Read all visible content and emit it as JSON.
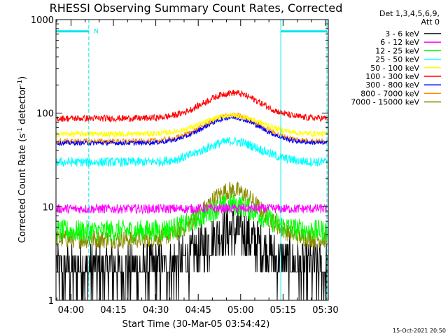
{
  "chart_data": {
    "type": "line",
    "title": "RHESSI Observing Summary Count Rates, Corrected",
    "xlabel": "Start Time (30-Mar-05 03:54:42)",
    "ylabel_parts": [
      "Corrected Count Rate (s",
      "-1",
      " detector",
      "-1",
      ")"
    ],
    "yscale": "log",
    "ylim": [
      1,
      1000
    ],
    "y_ticks": [
      {
        "value": 1,
        "label": "1"
      },
      {
        "value": 10,
        "label": "10"
      },
      {
        "value": 100,
        "label": "100"
      },
      {
        "value": 1000,
        "label": "1000"
      }
    ],
    "xlim_minutes": [
      234.7,
      331.0
    ],
    "x_ticks": [
      {
        "minute": 240,
        "label": "04:00"
      },
      {
        "minute": 255,
        "label": "04:15"
      },
      {
        "minute": 270,
        "label": "04:30"
      },
      {
        "minute": 285,
        "label": "04:45"
      },
      {
        "minute": 300,
        "label": "05:00"
      },
      {
        "minute": 315,
        "label": "05:15"
      },
      {
        "minute": 330,
        "label": "05:30"
      }
    ],
    "legend_header": [
      "Det 1,3,4,5,6,9,",
      "Att 0"
    ],
    "legend_position": "right",
    "series": [
      {
        "name": "3 - 6 keV",
        "color": "#000000",
        "base": 2.1,
        "peak": 5.5,
        "noise": 0.28,
        "quantized": true
      },
      {
        "name": "6 - 12 keV",
        "color": "#ff00ff",
        "base": 9.5,
        "peak": 9.6,
        "noise": 0.05
      },
      {
        "name": "12 - 25 keV",
        "color": "#00ff00",
        "base": 5.5,
        "peak": 10.5,
        "noise": 0.12
      },
      {
        "name": "25 - 50 keV",
        "color": "#00ffff",
        "base": 30,
        "peak": 50,
        "noise": 0.05
      },
      {
        "name": "50 - 100 keV",
        "color": "#ffff00",
        "base": 60,
        "peak": 95,
        "noise": 0.03
      },
      {
        "name": "100 - 300 keV",
        "color": "#ff0000",
        "base": 88,
        "peak": 165,
        "noise": 0.035
      },
      {
        "name": "300 - 800 keV",
        "color": "#0000ff",
        "base": 48,
        "peak": 90,
        "noise": 0.025
      },
      {
        "name": "800 - 7000 keV",
        "color": "#ff8c00",
        "base": 50,
        "peak": 95,
        "noise": 0.03
      },
      {
        "name": "7000 - 15000 keV",
        "color": "#8b8b00",
        "base": 4.5,
        "peak": 15,
        "noise": 0.1
      }
    ],
    "flags": [
      {
        "label": "N",
        "start_minute": 234.7,
        "end_minute": 246.3
      },
      {
        "label": "",
        "start_minute": 314.2,
        "end_minute": 330.5
      }
    ],
    "intervals": [
      {
        "kind": "solid",
        "minute": 234.7
      },
      {
        "kind": "dashed",
        "minute": 246.3
      },
      {
        "kind": "solid",
        "minute": 314.2
      },
      {
        "kind": "dashed",
        "minute": 330.5
      }
    ],
    "flag_value": 750,
    "peak_minute": 297,
    "peak_width_minutes": 10,
    "annotation_color": "#00e5ee"
  },
  "footer_stamp": "15-Oct-2021 20:50"
}
